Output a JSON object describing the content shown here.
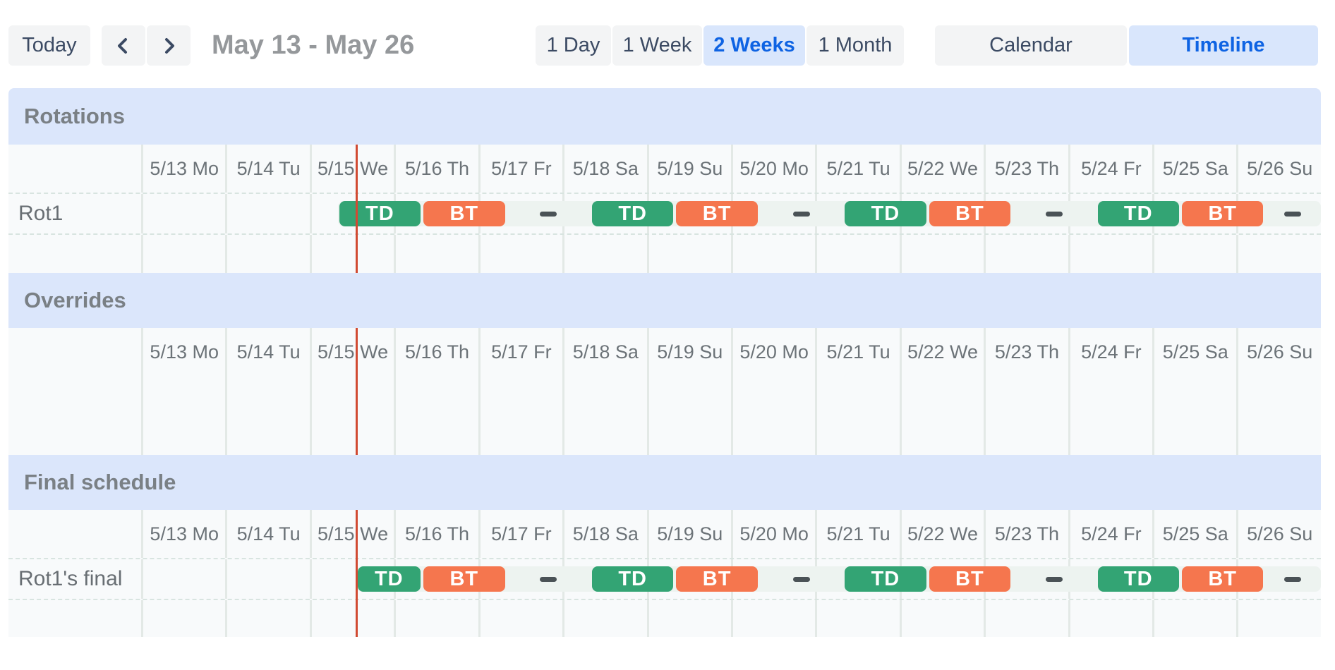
{
  "toolbar": {
    "today_label": "Today",
    "prev_icon": "chevron-left",
    "next_icon": "chevron-right",
    "date_range": "May 13 - May 26",
    "views": [
      {
        "label": "1 Day",
        "selected": false
      },
      {
        "label": "1 Week",
        "selected": false
      },
      {
        "label": "2 Weeks",
        "selected": true
      },
      {
        "label": "1 Month",
        "selected": false
      }
    ],
    "modes": [
      {
        "label": "Calendar",
        "selected": false
      },
      {
        "label": "Timeline",
        "selected": true
      }
    ],
    "accent_color": "#0e63e3",
    "accent_bg": "#d9e6fc"
  },
  "timeline": {
    "days": [
      "5/13 Mo",
      "5/14 Tu",
      "5/15 We",
      "5/16 Th",
      "5/17 Fr",
      "5/18 Sa",
      "5/19 Su",
      "5/20 Mo",
      "5/21 Tu",
      "5/22 We",
      "5/23 Th",
      "5/24 Fr",
      "5/25 Sa",
      "5/26 Su"
    ],
    "now": {
      "day": 2.55,
      "color": "#d14a32"
    },
    "colors": {
      "TD": "#33a474",
      "BT": "#f5764e"
    },
    "sections": [
      {
        "title": "Rotations",
        "rows": [
          {
            "label": "Rot1",
            "track_start": 2.3333,
            "events": [
              {
                "kind": "shift",
                "label": "TD",
                "start": 2.3333,
                "end": 3.3333
              },
              {
                "kind": "shift",
                "label": "BT",
                "start": 3.3333,
                "end": 4.3333
              },
              {
                "kind": "gap",
                "start": 4.3333,
                "end": 5.3333
              },
              {
                "kind": "shift",
                "label": "TD",
                "start": 5.3333,
                "end": 6.3333
              },
              {
                "kind": "shift",
                "label": "BT",
                "start": 6.3333,
                "end": 7.3333
              },
              {
                "kind": "gap",
                "start": 7.3333,
                "end": 8.3333
              },
              {
                "kind": "shift",
                "label": "TD",
                "start": 8.3333,
                "end": 9.3333
              },
              {
                "kind": "shift",
                "label": "BT",
                "start": 9.3333,
                "end": 10.3333
              },
              {
                "kind": "gap",
                "start": 10.3333,
                "end": 11.3333
              },
              {
                "kind": "shift",
                "label": "TD",
                "start": 11.3333,
                "end": 12.3333
              },
              {
                "kind": "shift",
                "label": "BT",
                "start": 12.3333,
                "end": 13.3333
              },
              {
                "kind": "gap",
                "start": 13.3333,
                "end": 14
              }
            ]
          }
        ]
      },
      {
        "title": "Overrides",
        "rows": []
      },
      {
        "title": "Final schedule",
        "rows": [
          {
            "label": "Rot1's final",
            "track_start": 2.55,
            "events": [
              {
                "kind": "shift",
                "label": "TD",
                "start": 2.55,
                "end": 3.3333
              },
              {
                "kind": "shift",
                "label": "BT",
                "start": 3.3333,
                "end": 4.3333
              },
              {
                "kind": "gap",
                "start": 4.3333,
                "end": 5.3333
              },
              {
                "kind": "shift",
                "label": "TD",
                "start": 5.3333,
                "end": 6.3333
              },
              {
                "kind": "shift",
                "label": "BT",
                "start": 6.3333,
                "end": 7.3333
              },
              {
                "kind": "gap",
                "start": 7.3333,
                "end": 8.3333
              },
              {
                "kind": "shift",
                "label": "TD",
                "start": 8.3333,
                "end": 9.3333
              },
              {
                "kind": "shift",
                "label": "BT",
                "start": 9.3333,
                "end": 10.3333
              },
              {
                "kind": "gap",
                "start": 10.3333,
                "end": 11.3333
              },
              {
                "kind": "shift",
                "label": "TD",
                "start": 11.3333,
                "end": 12.3333
              },
              {
                "kind": "shift",
                "label": "BT",
                "start": 12.3333,
                "end": 13.3333
              },
              {
                "kind": "gap",
                "start": 13.3333,
                "end": 14
              }
            ]
          }
        ]
      }
    ]
  }
}
